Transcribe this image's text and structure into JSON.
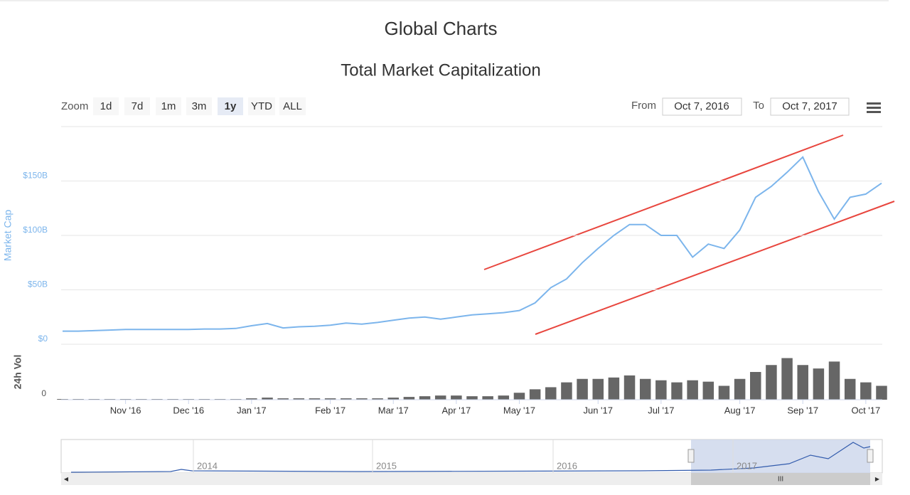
{
  "header": {
    "title": "Global Charts"
  },
  "toolbar": {
    "zoom_label": "Zoom",
    "zoom_buttons": [
      "1d",
      "7d",
      "1m",
      "3m",
      "1y",
      "YTD",
      "ALL"
    ],
    "selected": 4,
    "from_label": "From",
    "from": "Oct 7, 2016",
    "to_label": "To",
    "to": "Oct 7, 2017"
  },
  "chart_data": [
    {
      "type": "line",
      "title": "Total Market Capitalization",
      "y_label": "Market Cap",
      "color": "#7cb5ec",
      "grid": true,
      "categories": [
        null,
        null,
        null,
        null,
        "Nov '16",
        null,
        null,
        null,
        "Dec '16",
        null,
        null,
        null,
        "Jan '17",
        null,
        null,
        null,
        null,
        "Feb '17",
        null,
        null,
        null,
        "Mar '17",
        null,
        null,
        null,
        "Apr '17",
        null,
        null,
        null,
        "May '17",
        null,
        null,
        null,
        null,
        "Jun '17",
        null,
        null,
        null,
        "Jul '17",
        null,
        null,
        null,
        null,
        "Aug '17",
        null,
        null,
        null,
        "Sep '17",
        null,
        null,
        null,
        "Oct '17",
        null
      ],
      "values": [
        12,
        12,
        12.5,
        13,
        13.5,
        13.5,
        13.5,
        13.5,
        13.5,
        14,
        14,
        14.5,
        17,
        19,
        15,
        16,
        16.5,
        17.5,
        19.5,
        18.5,
        20,
        22,
        24,
        25,
        23,
        25,
        27,
        28,
        29,
        31,
        38,
        52,
        60,
        75,
        88,
        100,
        110,
        110,
        100,
        100,
        80,
        92,
        88,
        105,
        135,
        145,
        158,
        172,
        140,
        115,
        135,
        138,
        148
      ],
      "ylim": [
        0,
        200
      ],
      "yticks": [
        {
          "value": 0,
          "label": "$0"
        },
        {
          "value": 50,
          "label": "$50B"
        },
        {
          "value": 100,
          "label": "$100B"
        },
        {
          "value": 150,
          "label": "$150B"
        }
      ]
    },
    {
      "type": "bar",
      "y_label": "24h Vol",
      "color": "#666666",
      "values": [
        0.1,
        0.1,
        0.1,
        0.1,
        0.1,
        0.1,
        0.1,
        0.1,
        0.1,
        0.1,
        0.1,
        0.1,
        0.2,
        0.3,
        0.2,
        0.2,
        0.2,
        0.2,
        0.2,
        0.2,
        0.2,
        0.3,
        0.4,
        0.5,
        0.6,
        0.6,
        0.5,
        0.5,
        0.6,
        1.0,
        1.5,
        1.8,
        2.5,
        3,
        3,
        3.2,
        3.5,
        3,
        2.8,
        2.5,
        2.8,
        2.6,
        2,
        3,
        4,
        5,
        6,
        5,
        4.5,
        5.5,
        3,
        2.5,
        2
      ],
      "ylim": [
        0,
        8
      ],
      "yticks": [
        0
      ]
    }
  ],
  "navigator": {
    "labels": [
      "2014",
      "2015",
      "2016",
      "2017"
    ]
  }
}
